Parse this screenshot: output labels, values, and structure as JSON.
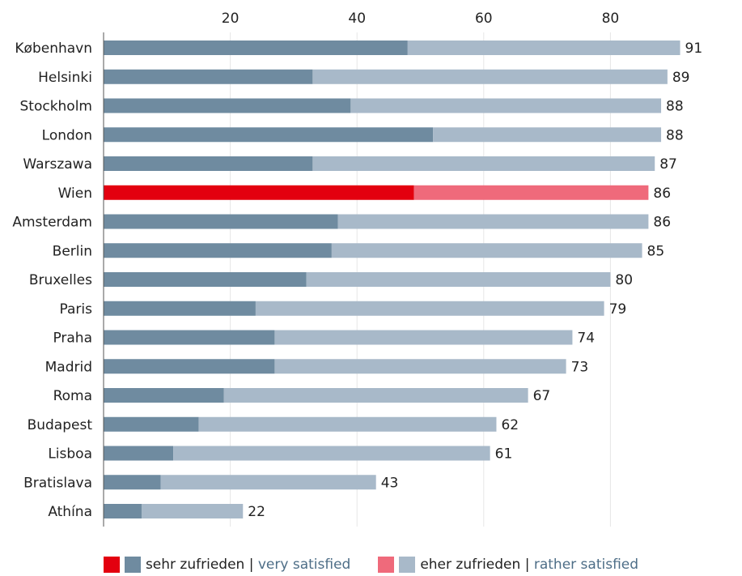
{
  "chart_data": {
    "type": "bar",
    "orientation": "horizontal",
    "stacked": true,
    "categories": [
      "København",
      "Helsinki",
      "Stockholm",
      "London",
      "Warszawa",
      "Wien",
      "Amsterdam",
      "Berlin",
      "Bruxelles",
      "Paris",
      "Praha",
      "Madrid",
      "Roma",
      "Budapest",
      "Lisboa",
      "Bratislava",
      "Athína"
    ],
    "series": [
      {
        "name": "sehr zufrieden | very satisfied",
        "values": [
          48,
          33,
          39,
          52,
          33,
          49,
          37,
          36,
          32,
          24,
          27,
          27,
          19,
          15,
          11,
          9,
          6
        ]
      },
      {
        "name": "eher zufrieden | rather satisfied",
        "values": [
          43,
          56,
          49,
          36,
          54,
          37,
          49,
          49,
          48,
          55,
          47,
          46,
          48,
          47,
          50,
          34,
          16
        ]
      }
    ],
    "totals": [
      91,
      89,
      88,
      88,
      87,
      86,
      86,
      85,
      80,
      79,
      74,
      73,
      67,
      62,
      61,
      43,
      22
    ],
    "highlight_category": "Wien",
    "x_ticks": [
      20,
      40,
      60,
      80
    ],
    "xlim": [
      0,
      100
    ],
    "x_axis_position": "top",
    "grid": true,
    "legend_position": "bottom-center",
    "colors": {
      "very_satisfied": "#6f8ba0",
      "rather_satisfied": "#a8b9c9",
      "highlight_very_satisfied": "#e3000f",
      "highlight_rather_satisfied": "#ef6a7b",
      "grid": "#e6e6e6",
      "axis": "#555555"
    }
  },
  "legend": {
    "very_satisfied_de": "sehr zufrieden",
    "very_satisfied_en": "very satisfied",
    "rather_satisfied_de": "eher zufrieden",
    "rather_satisfied_en": "rather satisfied",
    "separator": "|"
  }
}
